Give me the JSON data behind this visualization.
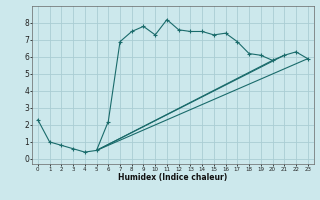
{
  "xlabel": "Humidex (Indice chaleur)",
  "bg_color": "#cce8ec",
  "grid_color_major": "#aacdd4",
  "grid_color_minor": "#bbdde2",
  "line_color": "#1a6b6b",
  "xlim": [
    -0.5,
    23.5
  ],
  "ylim": [
    -0.3,
    9.0
  ],
  "xticks": [
    0,
    1,
    2,
    3,
    4,
    5,
    6,
    7,
    8,
    9,
    10,
    11,
    12,
    13,
    14,
    15,
    16,
    17,
    18,
    19,
    20,
    21,
    22,
    23
  ],
  "yticks": [
    0,
    1,
    2,
    3,
    4,
    5,
    6,
    7,
    8
  ],
  "series1_x": [
    0,
    1,
    2,
    3,
    4,
    5,
    6,
    7,
    8,
    9,
    10,
    11,
    12,
    13,
    14,
    15,
    16,
    17,
    18,
    19,
    20,
    21,
    22,
    23
  ],
  "series1_y": [
    2.3,
    1.0,
    0.8,
    0.6,
    0.4,
    0.5,
    2.2,
    6.9,
    7.5,
    7.8,
    7.3,
    8.2,
    7.6,
    7.5,
    7.5,
    7.3,
    7.4,
    6.9,
    6.2,
    6.1,
    5.8,
    6.1,
    6.3,
    5.9
  ],
  "series2_x": [
    5,
    23
  ],
  "series2_y": [
    0.5,
    5.9
  ],
  "series3_x": [
    5,
    20
  ],
  "series3_y": [
    0.5,
    5.8
  ],
  "series4_x": [
    5,
    21
  ],
  "series4_y": [
    0.5,
    6.1
  ]
}
